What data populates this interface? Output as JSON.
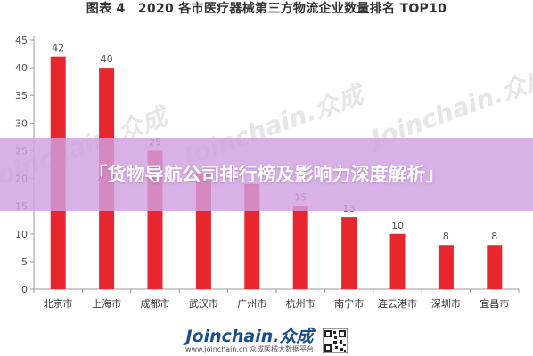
{
  "title": "图表 4　2020 各市医疗器械第三方物流企业数量排名 TOP10",
  "banner": "「货物导航公司排行榜及影响力深度解析」",
  "footer": {
    "logo": "Joinchain.众成",
    "subtitle": "www.joinchain.cn 众成医械大数据平台"
  },
  "watermark": "Joinchain.众成",
  "colors": {
    "bar": "#e8262d",
    "axis": "#999999",
    "text": "#555555",
    "banner": "#d0a0e1"
  },
  "chart_data": {
    "type": "bar",
    "categories": [
      "北京市",
      "上海市",
      "成都市",
      "武汉市",
      "广州市",
      "杭州市",
      "南宁市",
      "连云港市",
      "深圳市",
      "宜昌市"
    ],
    "values": [
      42,
      40,
      25,
      21,
      19,
      15,
      13,
      10,
      8,
      8
    ],
    "data_labels": [
      "42",
      "40",
      "25",
      "",
      "",
      "15",
      "13",
      "10",
      "8",
      "8"
    ],
    "yticks": [
      0,
      5,
      10,
      15,
      20,
      25,
      30,
      35,
      40,
      45
    ],
    "ylim": [
      0,
      45
    ],
    "grid": false,
    "legend": "none"
  }
}
